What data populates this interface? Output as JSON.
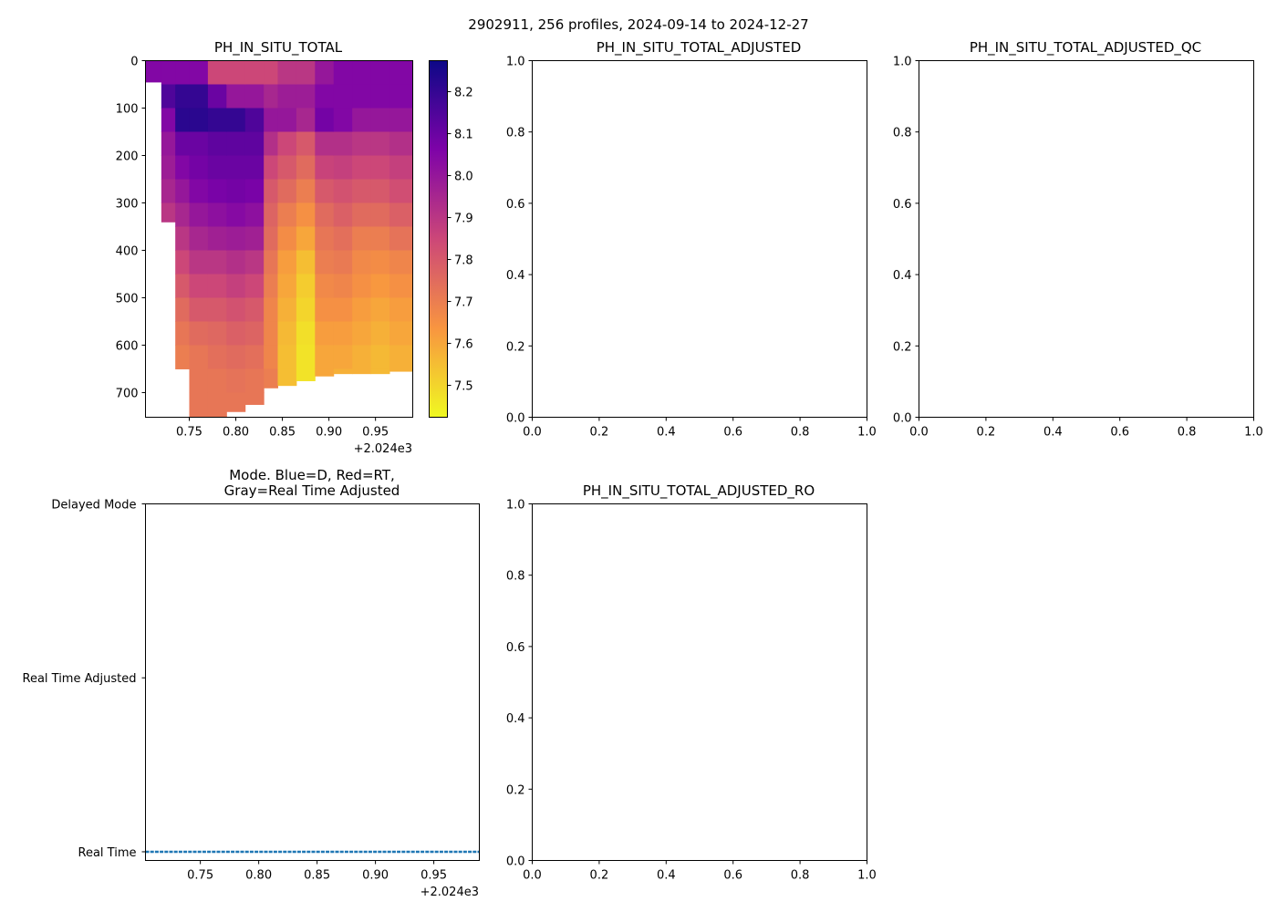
{
  "figure_title": "2902911, 256 profiles, 2024-09-14 to 2024-12-27",
  "chart_data": [
    {
      "type": "heatmap",
      "title": "PH_IN_SITU_TOTAL",
      "x_offset_label": "+2.024e3",
      "xlim": [
        0.703,
        0.99
      ],
      "ylim": [
        752,
        0
      ],
      "xticks": [
        0.75,
        0.8,
        0.85,
        0.9,
        0.95
      ],
      "xtick_labels": [
        "0.75",
        "0.80",
        "0.85",
        "0.90",
        "0.95"
      ],
      "yticks": [
        0,
        100,
        200,
        300,
        400,
        500,
        600,
        700
      ],
      "ytick_labels": [
        "0",
        "100",
        "200",
        "300",
        "400",
        "500",
        "600",
        "700"
      ],
      "colormap": "plasma_r",
      "clim": [
        7.424,
        8.274
      ],
      "colorbar_ticks": [
        7.5,
        7.6,
        7.7,
        7.8,
        7.9,
        8.0,
        8.1,
        8.2
      ],
      "colorbar_tick_labels": [
        "7.5",
        "7.6",
        "7.7",
        "7.8",
        "7.9",
        "8.0",
        "8.1",
        "8.2"
      ],
      "depth_bin": 50,
      "column_starts": [
        0.703,
        0.72,
        0.735,
        0.75,
        0.77,
        0.79,
        0.81,
        0.83,
        0.845,
        0.865,
        0.885,
        0.905,
        0.925,
        0.945,
        0.965
      ],
      "column_end": 0.99,
      "max_depth": [
        45,
        340,
        650,
        752,
        752,
        740,
        725,
        690,
        685,
        675,
        665,
        660,
        660,
        660,
        655
      ],
      "values": [
        [
          8.05
        ],
        [
          8.05,
          8.15,
          8.05,
          8.0,
          7.98,
          7.95,
          7.9
        ],
        [
          8.05,
          8.2,
          8.22,
          8.1,
          8.05,
          8.0,
          7.95,
          7.9,
          7.85,
          7.8,
          7.75,
          7.72,
          7.7
        ],
        [
          8.05,
          8.2,
          8.22,
          8.1,
          8.08,
          8.05,
          8.0,
          7.95,
          7.9,
          7.85,
          7.8,
          7.75,
          7.72,
          7.72,
          7.72,
          7.72
        ],
        [
          7.85,
          8.1,
          8.2,
          8.12,
          8.1,
          8.07,
          8.02,
          7.97,
          7.9,
          7.85,
          7.8,
          7.76,
          7.74,
          7.72,
          7.72,
          7.72
        ],
        [
          7.85,
          8.0,
          8.2,
          8.12,
          8.1,
          8.08,
          8.04,
          7.98,
          7.92,
          7.87,
          7.82,
          7.78,
          7.75,
          7.73,
          7.72
        ],
        [
          7.85,
          8.0,
          8.15,
          8.12,
          8.1,
          8.07,
          8.02,
          7.97,
          7.9,
          7.85,
          7.8,
          7.77,
          7.74,
          7.72,
          7.72
        ],
        [
          7.85,
          7.95,
          8.0,
          7.92,
          7.85,
          7.8,
          7.77,
          7.75,
          7.72,
          7.7,
          7.68,
          7.68,
          7.68,
          7.7
        ],
        [
          7.9,
          7.98,
          8.0,
          7.85,
          7.8,
          7.75,
          7.7,
          7.66,
          7.62,
          7.6,
          7.58,
          7.56,
          7.55,
          7.55
        ],
        [
          7.9,
          7.98,
          7.95,
          7.8,
          7.75,
          7.7,
          7.65,
          7.6,
          7.55,
          7.52,
          7.5,
          7.48,
          7.47,
          7.47
        ],
        [
          8.0,
          8.05,
          8.08,
          7.92,
          7.86,
          7.8,
          7.75,
          7.72,
          7.7,
          7.67,
          7.65,
          7.62,
          7.6,
          7.6
        ],
        [
          8.05,
          8.05,
          8.05,
          7.92,
          7.87,
          7.82,
          7.78,
          7.74,
          7.71,
          7.68,
          7.65,
          7.62,
          7.6,
          7.58
        ],
        [
          8.05,
          8.05,
          8.0,
          7.9,
          7.85,
          7.8,
          7.75,
          7.7,
          7.67,
          7.65,
          7.62,
          7.6,
          7.58,
          7.58
        ],
        [
          8.05,
          8.05,
          8.0,
          7.9,
          7.85,
          7.8,
          7.75,
          7.7,
          7.66,
          7.63,
          7.6,
          7.58,
          7.56,
          7.56
        ],
        [
          8.05,
          8.05,
          8.0,
          7.92,
          7.87,
          7.83,
          7.78,
          7.73,
          7.68,
          7.65,
          7.62,
          7.6,
          7.58,
          7.58
        ]
      ]
    },
    {
      "type": "scatter",
      "title": "PH_IN_SITU_TOTAL_ADJUSTED",
      "xlim": [
        0,
        1
      ],
      "ylim": [
        0,
        1
      ],
      "xtick_labels": [
        "0.0",
        "0.2",
        "0.4",
        "0.6",
        "0.8",
        "1.0"
      ],
      "ytick_labels": [
        "0.0",
        "0.2",
        "0.4",
        "0.6",
        "0.8",
        "1.0"
      ]
    },
    {
      "type": "scatter",
      "title": "PH_IN_SITU_TOTAL_ADJUSTED_QC",
      "xlim": [
        0,
        1
      ],
      "ylim": [
        0,
        1
      ],
      "xtick_labels": [
        "0.0",
        "0.2",
        "0.4",
        "0.6",
        "0.8",
        "1.0"
      ],
      "ytick_labels": [
        "0.0",
        "0.2",
        "0.4",
        "0.6",
        "0.8",
        "1.0"
      ]
    },
    {
      "type": "line",
      "title_line1": "Mode. Blue=D, Red=RT,",
      "title_line2": "Gray=Real Time Adjusted",
      "x_offset_label": "+2.024e3",
      "xlim": [
        0.703,
        0.989
      ],
      "ylim": [
        -0.05,
        2
      ],
      "xticks": [
        0.75,
        0.8,
        0.85,
        0.9,
        0.95
      ],
      "xtick_labels": [
        "0.75",
        "0.80",
        "0.85",
        "0.90",
        "0.95"
      ],
      "yticks": [
        2,
        1,
        0
      ],
      "ytick_labels": [
        "Delayed Mode",
        "Real Time Adjusted",
        "Real Time"
      ],
      "series": [
        {
          "name": "mode",
          "x_start": 0.703,
          "x_end": 0.989,
          "value": 0,
          "color": "#1f77b4"
        }
      ]
    },
    {
      "type": "scatter",
      "title": "PH_IN_SITU_TOTAL_ADJUSTED_RO",
      "xlim": [
        0,
        1
      ],
      "ylim": [
        0,
        1
      ],
      "xtick_labels": [
        "0.0",
        "0.2",
        "0.4",
        "0.6",
        "0.8",
        "1.0"
      ],
      "ytick_labels": [
        "0.0",
        "0.2",
        "0.4",
        "0.6",
        "0.8",
        "1.0"
      ]
    }
  ]
}
